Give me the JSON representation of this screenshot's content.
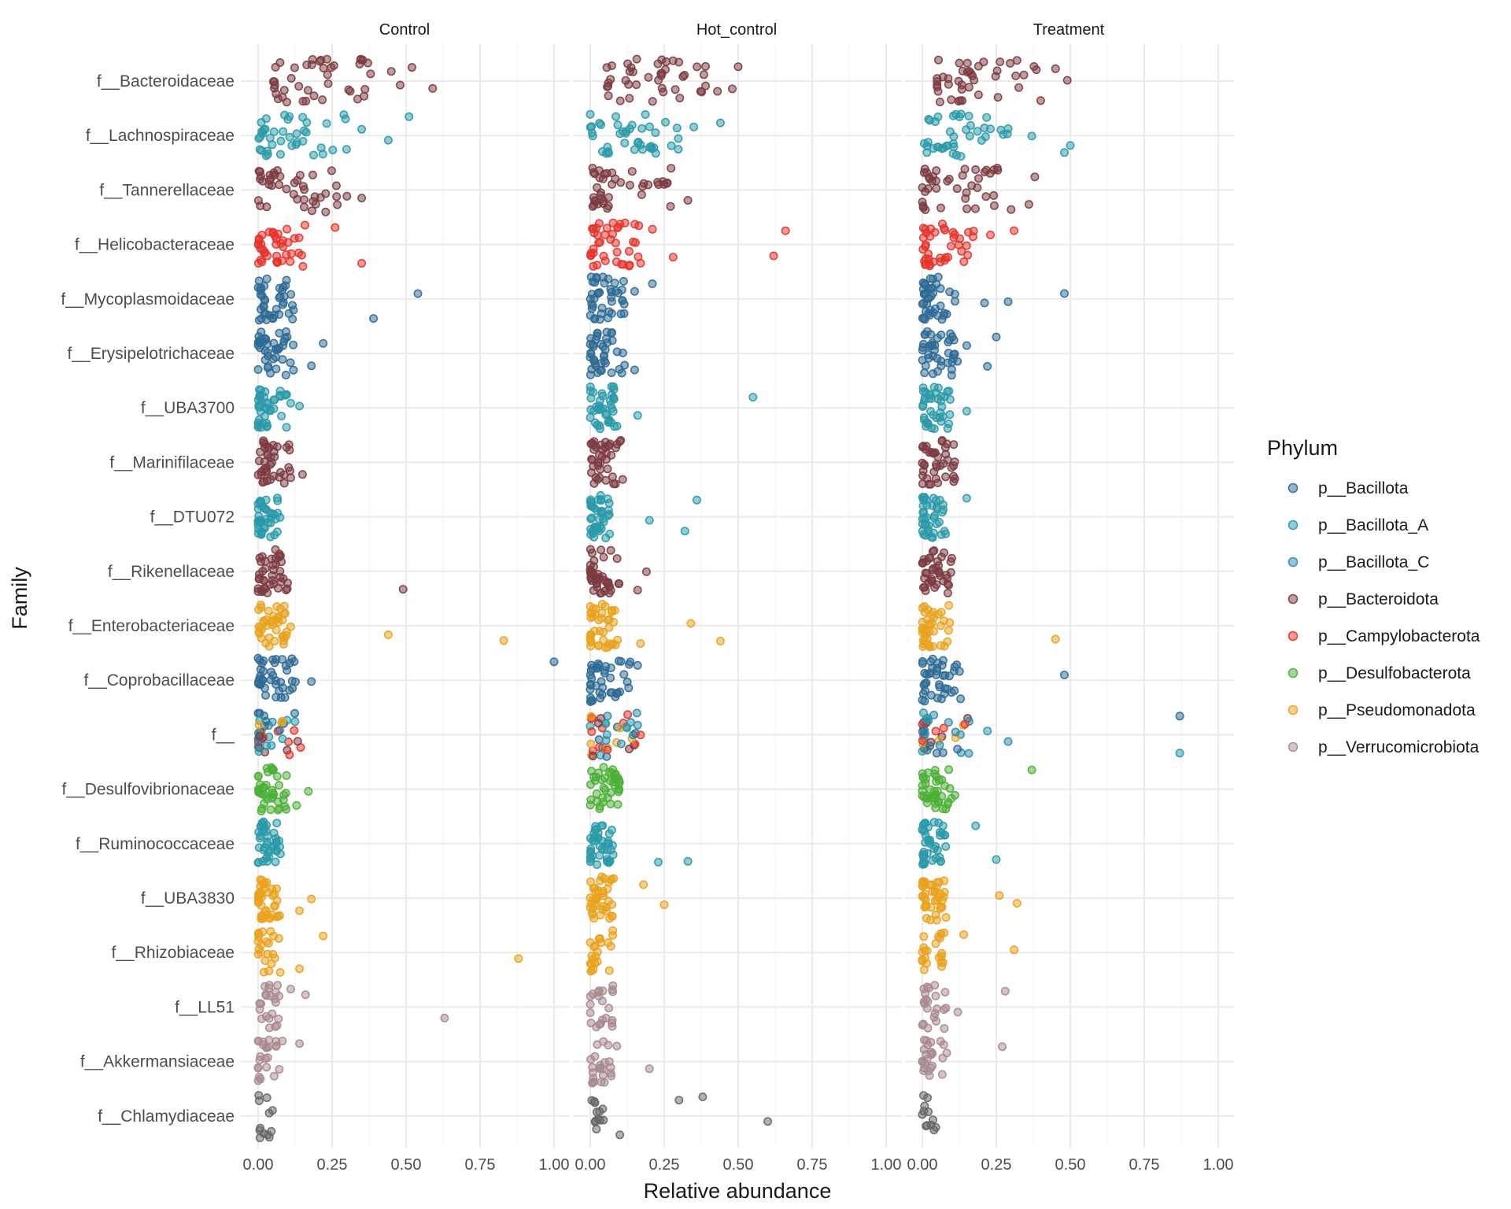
{
  "chart_data": {
    "type": "scatter",
    "xlabel": "Relative abundance",
    "ylabel": "Family",
    "xlim": [
      0,
      1
    ],
    "x_ticks": [
      "0.00",
      "0.25",
      "0.50",
      "0.75",
      "1.00"
    ],
    "panels": [
      "Control",
      "Hot_control",
      "Treatment"
    ],
    "families": [
      "f__Bacteroidaceae",
      "f__Lachnospiraceae",
      "f__Tannerellaceae",
      "f__Helicobacteraceae",
      "f__Mycoplasmoidaceae",
      "f__Erysipelotrichaceae",
      "f__UBA3700",
      "f__Marinifilaceae",
      "f__DTU072",
      "f__Rikenellaceae",
      "f__Enterobacteriaceae",
      "f__Coprobacillaceae",
      "f__",
      "f__Desulfovibrionaceae",
      "f__Ruminococcaceae",
      "f__UBA3830",
      "f__Rhizobiaceae",
      "f__LL51",
      "f__Akkermansiaceae",
      "f__Chlamydiaceae"
    ],
    "legend": {
      "title": "Phylum",
      "placement": "right",
      "entries": [
        {
          "name": "p__Bacillota",
          "color": "#2E6A93"
        },
        {
          "name": "p__Bacillota_A",
          "color": "#2A99A8"
        },
        {
          "name": "p__Bacillota_C",
          "color": "#2B8CAC"
        },
        {
          "name": "p__Bacteroidota",
          "color": "#7B3B40"
        },
        {
          "name": "p__Campylobacterota",
          "color": "#E3332C"
        },
        {
          "name": "p__Desulfobacterota",
          "color": "#4CAF36"
        },
        {
          "name": "p__Pseudomonadota",
          "color": "#E8A21E"
        },
        {
          "name": "p__Verrucomicrobiota",
          "color": "#A88A8D"
        }
      ]
    },
    "family_phylum": {
      "f__Bacteroidaceae": "p__Bacteroidota",
      "f__Lachnospiraceae": "p__Bacillota_A",
      "f__Tannerellaceae": "p__Bacteroidota",
      "f__Helicobacteraceae": "p__Campylobacterota",
      "f__Mycoplasmoidaceae": "p__Bacillota",
      "f__Erysipelotrichaceae": "p__Bacillota",
      "f__UBA3700": "p__Bacillota_A",
      "f__Marinifilaceae": "p__Bacteroidota",
      "f__DTU072": "p__Bacillota_A",
      "f__Rikenellaceae": "p__Bacteroidota",
      "f__Enterobacteriaceae": "p__Pseudomonadota",
      "f__Coprobacillaceae": "p__Bacillota",
      "f__": "mixed",
      "f__Desulfovibrionaceae": "p__Desulfobacterota",
      "f__Ruminococcaceae": "p__Bacillota_A",
      "f__UBA3830": "p__Pseudomonadota",
      "f__Rhizobiaceae": "p__Pseudomonadota",
      "f__LL51": "p__Verrucomicrobiota",
      "f__Akkermansiaceae": "p__Verrucomicrobiota",
      "f__Chlamydiaceae": "unassigned"
    },
    "unassigned_color": "#666666",
    "outliers": {
      "Control": {
        "f__Bacteroidaceae": [
          0.59,
          0.52,
          0.48,
          0.45,
          0.38
        ],
        "f__Lachnospiraceae": [
          0.51,
          0.44,
          0.35
        ],
        "f__Tannerellaceae": [
          0.35,
          0.3
        ],
        "f__Helicobacteraceae": [
          0.35,
          0.26
        ],
        "f__Mycoplasmoidaceae": [
          0.54,
          0.39
        ],
        "f__Erysipelotrichaceae": [
          0.22,
          0.18
        ],
        "f__UBA3700": [
          0.14,
          0.11
        ],
        "f__Marinifilaceae": [
          0.15
        ],
        "f__Rikenellaceae": [
          0.49
        ],
        "f__Enterobacteriaceae": [
          0.83,
          0.44,
          0.11
        ],
        "f__Coprobacillaceae": [
          1.0,
          0.18
        ],
        "f__Desulfovibrionaceae": [
          0.17,
          0.13
        ],
        "f__UBA3830": [
          0.18,
          0.14
        ],
        "f__Rhizobiaceae": [
          0.88,
          0.22,
          0.14
        ],
        "f__LL51": [
          0.63,
          0.16,
          0.11
        ],
        "f__Akkermansiaceae": [
          0.14
        ]
      },
      "Hot_control": {
        "f__Bacteroidaceae": [
          0.5,
          0.48,
          0.43,
          0.39
        ],
        "f__Lachnospiraceae": [
          0.44,
          0.35
        ],
        "f__Tannerellaceae": [
          0.33,
          0.25
        ],
        "f__Helicobacteraceae": [
          0.66,
          0.62,
          0.28,
          0.21
        ],
        "f__Mycoplasmoidaceae": [
          0.21,
          0.15
        ],
        "f__Erysipelotrichaceae": [
          0.15
        ],
        "f__UBA3700": [
          0.55,
          0.16
        ],
        "f__DTU072": [
          0.36,
          0.32,
          0.2
        ],
        "f__Rikenellaceae": [
          0.19,
          0.16
        ],
        "f__Enterobacteriaceae": [
          0.44,
          0.34,
          0.17
        ],
        "f__Coprobacillaceae": [
          0.16
        ],
        "f__": [
          0.17,
          0.16
        ],
        "f__Ruminococcaceae": [
          0.33,
          0.23
        ],
        "f__UBA3830": [
          0.25,
          0.18
        ],
        "f__Akkermansiaceae": [
          0.2
        ],
        "f__Chlamydiaceae": [
          0.6,
          0.38,
          0.3,
          0.1
        ]
      },
      "Treatment": {
        "f__Bacteroidaceae": [
          0.49,
          0.45,
          0.4
        ],
        "f__Lachnospiraceae": [
          0.5,
          0.48,
          0.37
        ],
        "f__Tannerellaceae": [
          0.38,
          0.36,
          0.3
        ],
        "f__Helicobacteraceae": [
          0.31,
          0.23
        ],
        "f__Mycoplasmoidaceae": [
          0.48,
          0.29,
          0.21
        ],
        "f__Erysipelotrichaceae": [
          0.25,
          0.22,
          0.15
        ],
        "f__UBA3700": [
          0.15
        ],
        "f__DTU072": [
          0.15
        ],
        "f__Enterobacteriaceae": [
          0.45
        ],
        "f__Coprobacillaceae": [
          0.48
        ],
        "f__": [
          0.87,
          0.87,
          0.29,
          0.22
        ],
        "f__Desulfovibrionaceae": [
          0.37,
          0.11
        ],
        "f__Ruminococcaceae": [
          0.25,
          0.18
        ],
        "f__UBA3830": [
          0.32,
          0.26
        ],
        "f__Rhizobiaceae": [
          0.31,
          0.14
        ],
        "f__LL51": [
          0.28,
          0.12
        ],
        "f__Akkermansiaceae": [
          0.27
        ]
      }
    }
  }
}
